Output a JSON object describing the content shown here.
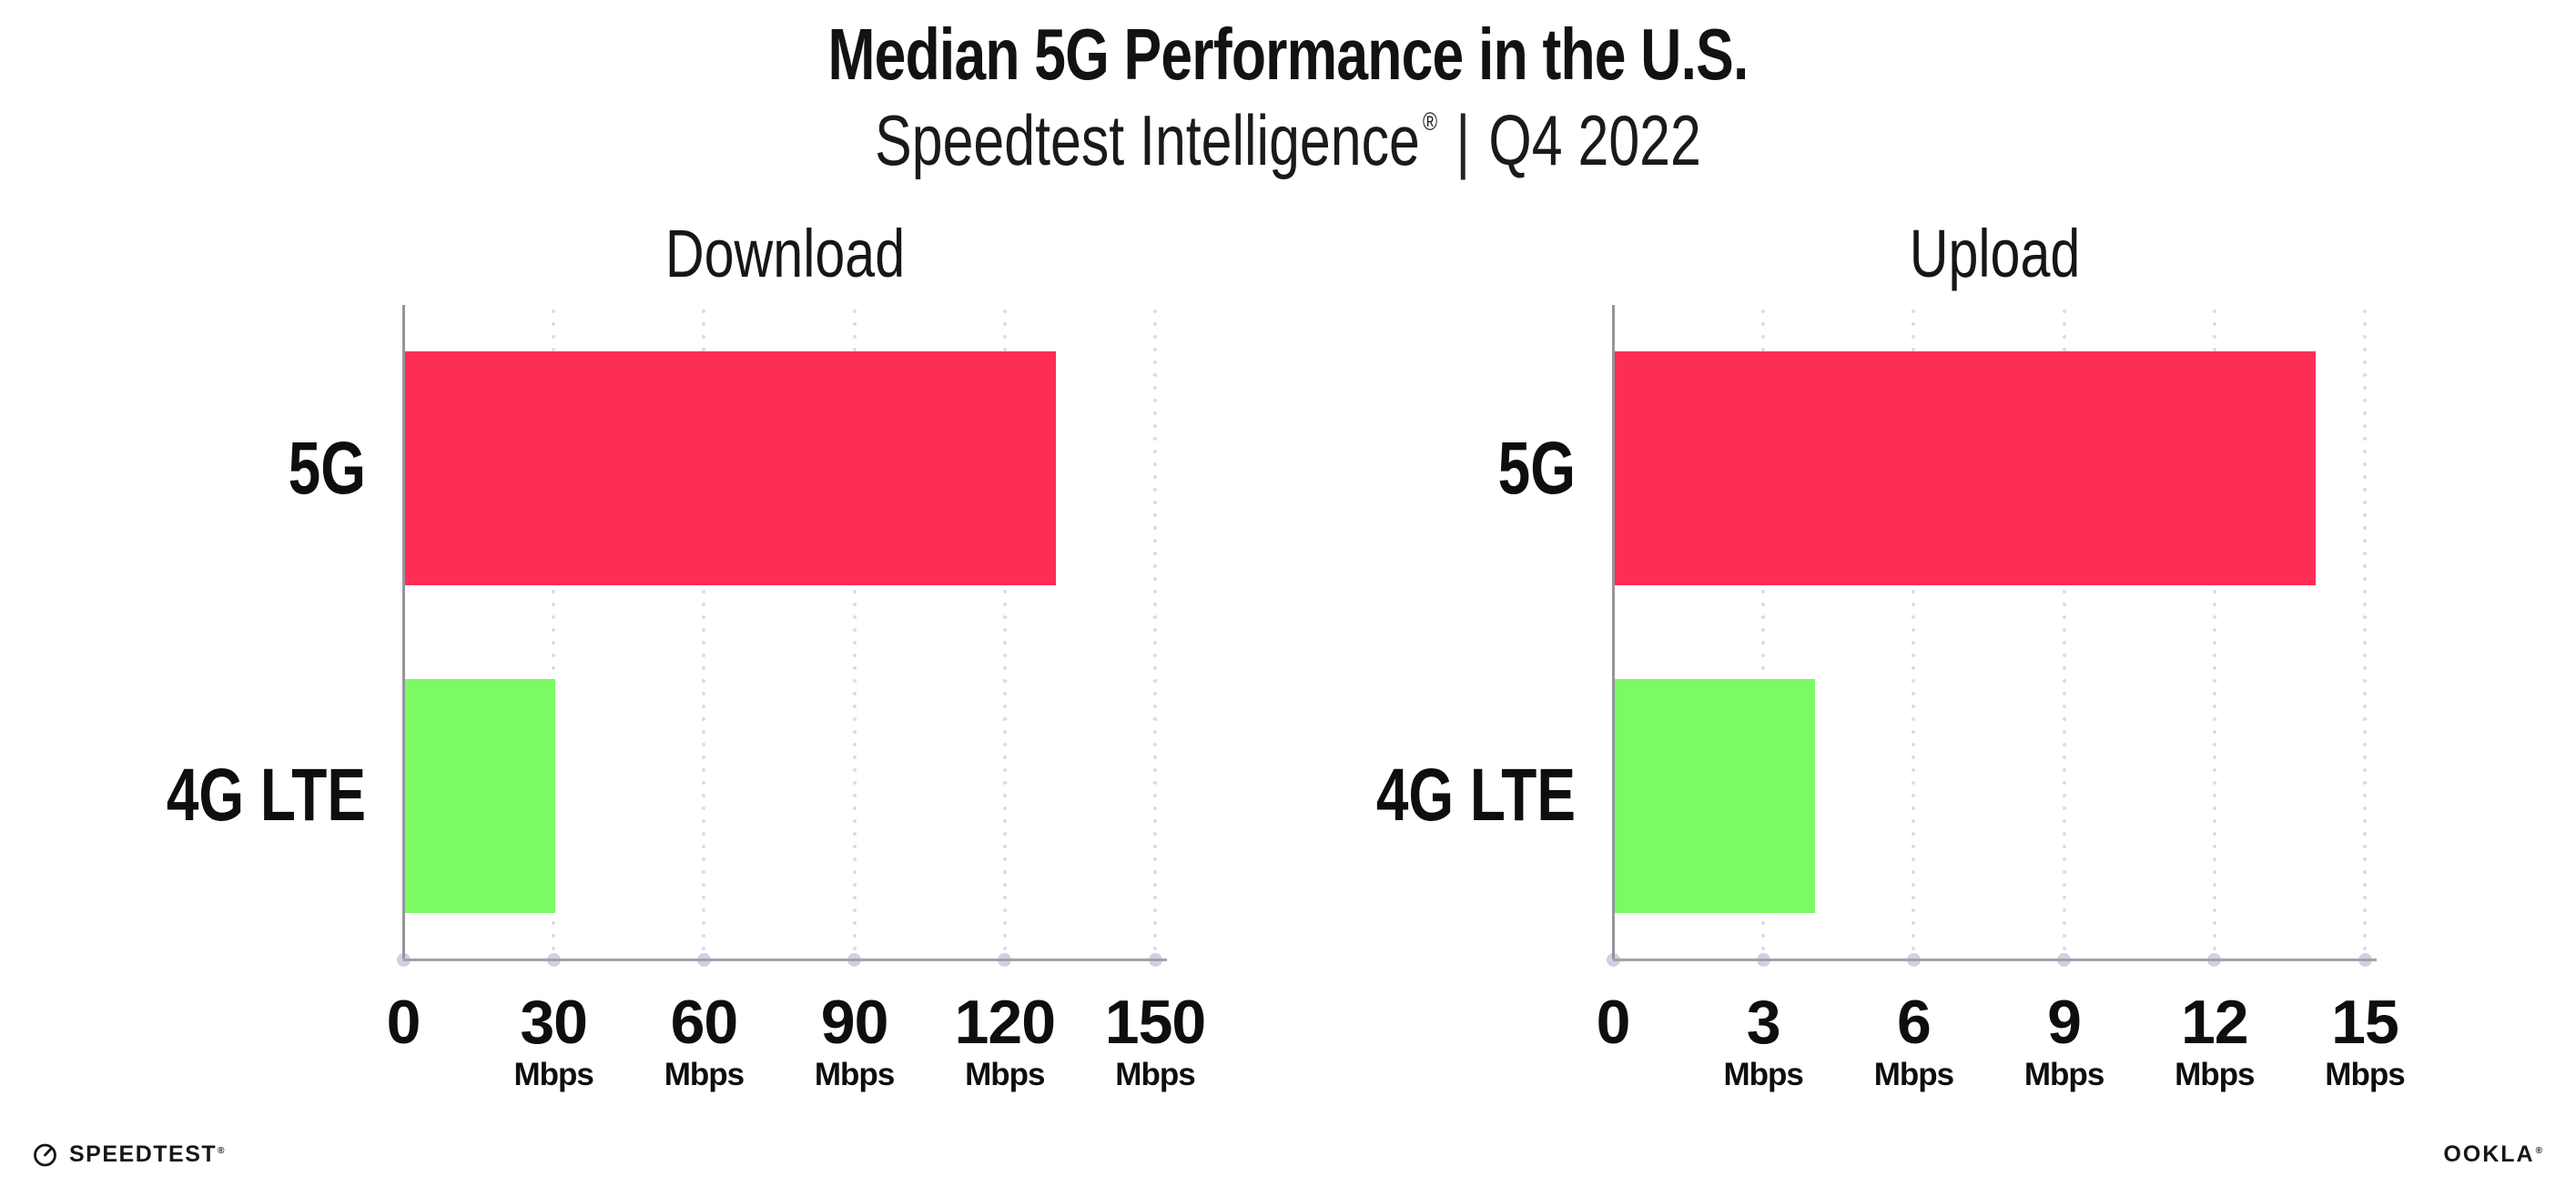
{
  "header": {
    "title": "Median 5G Performance in the U.S.",
    "subtitle": {
      "brand": "Speedtest Intelligence",
      "registered_mark": "®",
      "separator": "|",
      "period": "Q4 2022"
    }
  },
  "chart_data": [
    {
      "type": "bar",
      "orientation": "horizontal",
      "title": "Download",
      "categories": [
        "5G",
        "4G LTE"
      ],
      "values": [
        130,
        30
      ],
      "unit": "Mbps",
      "xlim": [
        0,
        150
      ],
      "xticks": [
        0,
        30,
        60,
        90,
        120,
        150
      ],
      "bar_colors": [
        "#fd2d56",
        "#7cfa64"
      ],
      "grid": "dotted-vertical",
      "legend": "none"
    },
    {
      "type": "bar",
      "orientation": "horizontal",
      "title": "Upload",
      "categories": [
        "5G",
        "4G LTE"
      ],
      "values": [
        14,
        4
      ],
      "unit": "Mbps",
      "xlim": [
        0,
        15
      ],
      "xticks": [
        0,
        3,
        6,
        9,
        12,
        15
      ],
      "bar_colors": [
        "#fd2d56",
        "#7cfa64"
      ],
      "grid": "dotted-vertical",
      "legend": "none"
    }
  ],
  "footer": {
    "speedtest_icon": "gauge-icon",
    "speedtest_logo_text": "SPEEDTEST",
    "speedtest_mark": "®",
    "ookla_logo_text": "OOKLA",
    "ookla_mark": "®"
  },
  "colors": {
    "bar_5g": "#fd2d56",
    "bar_4g_lte": "#7cfa64",
    "axis": "#9a9aa0",
    "gridline_dots": "#d9dbe8",
    "axis_tick_dots": "#cdd2e3",
    "text": "#121212",
    "background": "#ffffff"
  }
}
